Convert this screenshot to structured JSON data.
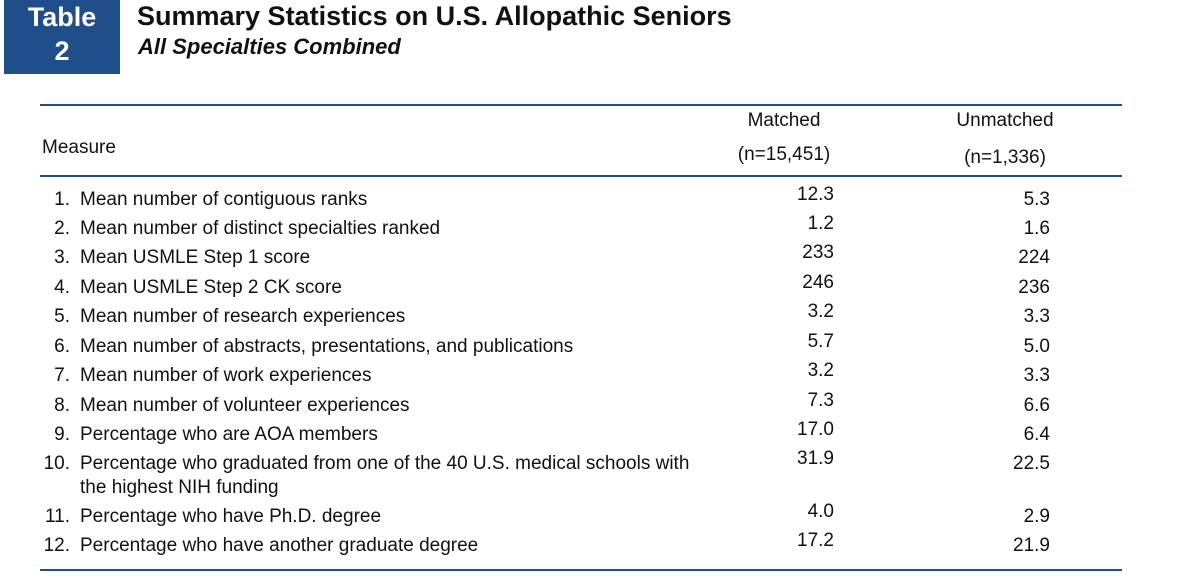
{
  "badge": {
    "word": "Table",
    "number": "2"
  },
  "title": "Summary Statistics on U.S. Allopathic Seniors",
  "subtitle": "All Specialties Combined",
  "columns": {
    "measure": "Measure",
    "matched": "Matched",
    "matched_n": "(n=15,451)",
    "unmatched": "Unmatched",
    "unmatched_n": "(n=1,336)"
  },
  "rows": [
    {
      "index": "1.",
      "label": "Mean number of contiguous ranks",
      "matched": "12.3",
      "unmatched": "5.3"
    },
    {
      "index": "2.",
      "label": "Mean number of distinct specialties ranked",
      "matched": "1.2",
      "unmatched": "1.6"
    },
    {
      "index": "3.",
      "label": "Mean USMLE Step 1 score",
      "matched": "233",
      "unmatched": "224"
    },
    {
      "index": "4.",
      "label": "Mean USMLE Step 2 CK score",
      "matched": "246",
      "unmatched": "236"
    },
    {
      "index": "5.",
      "label": "Mean number of research experiences",
      "matched": "3.2",
      "unmatched": "3.3"
    },
    {
      "index": "6.",
      "label": "Mean number of abstracts, presentations, and publications",
      "matched": "5.7",
      "unmatched": "5.0"
    },
    {
      "index": "7.",
      "label": "Mean number of work experiences",
      "matched": "3.2",
      "unmatched": "3.3"
    },
    {
      "index": "8.",
      "label": "Mean number of volunteer experiences",
      "matched": "7.3",
      "unmatched": "6.6"
    },
    {
      "index": "9.",
      "label": "Percentage who are AOA members",
      "matched": "17.0",
      "unmatched": "6.4"
    },
    {
      "index": "10.",
      "label": "Percentage who graduated from one of the 40 U.S. medical schools with the highest NIH funding",
      "matched": "31.9",
      "unmatched": "22.5"
    },
    {
      "index": "11.",
      "label": "Percentage who have Ph.D. degree",
      "matched": "4.0",
      "unmatched": "2.9"
    },
    {
      "index": "12.",
      "label": "Percentage who have another graduate degree",
      "matched": "17.2",
      "unmatched": "21.9"
    }
  ]
}
